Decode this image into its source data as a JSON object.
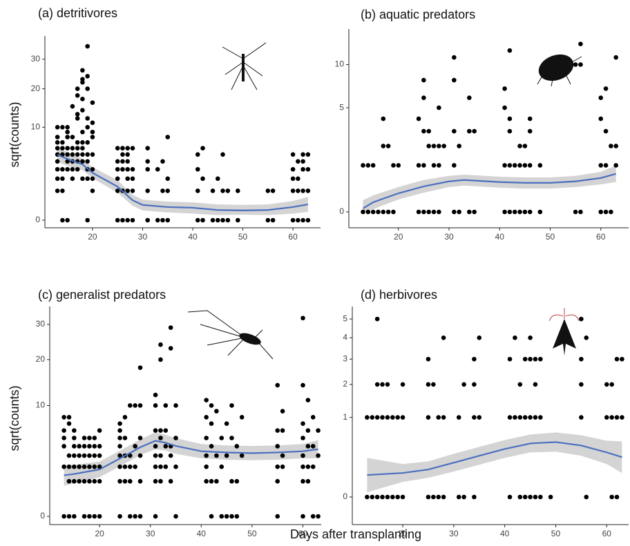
{
  "xlabel": "Days after transplanting",
  "chart_data": [
    {
      "type": "scatter",
      "title": "(a) detritivores",
      "ylabel": "sqrt(counts)",
      "yscale": "sqrt",
      "xlim": [
        10.5,
        65.5
      ],
      "xticks": [
        20,
        30,
        40,
        50,
        60
      ],
      "ylim": [
        0,
        37
      ],
      "yticks": [
        0,
        10,
        20,
        30
      ],
      "point_color": "#000000",
      "line_color": "#4a6fbf",
      "band_color": "#d4d4d4",
      "points": {
        "x": [
          13,
          13,
          13,
          13,
          13,
          13,
          13,
          13,
          13,
          14,
          14,
          14,
          14,
          14,
          14,
          14,
          14,
          15,
          15,
          15,
          15,
          15,
          15,
          15,
          15,
          16,
          16,
          16,
          16,
          16,
          16,
          16,
          17,
          17,
          17,
          17,
          17,
          17,
          17,
          17,
          17,
          18,
          18,
          18,
          18,
          18,
          18,
          18,
          18,
          18,
          18,
          18,
          19,
          19,
          19,
          19,
          19,
          19,
          19,
          19,
          19,
          19,
          19,
          20,
          20,
          20,
          20,
          20,
          20,
          20,
          20,
          25,
          25,
          25,
          25,
          25,
          25,
          26,
          26,
          26,
          26,
          26,
          26,
          27,
          27,
          27,
          27,
          27,
          27,
          27,
          28,
          28,
          28,
          28,
          28,
          31,
          31,
          31,
          31,
          31,
          33,
          33,
          34,
          34,
          34,
          35,
          35,
          35,
          35,
          41,
          41,
          41,
          41,
          42,
          42,
          42,
          44,
          44,
          45,
          45,
          46,
          46,
          46,
          47,
          47,
          49,
          49,
          55,
          55,
          56,
          56,
          60,
          60,
          60,
          60,
          60,
          61,
          61,
          61,
          61,
          62,
          62,
          62,
          62,
          62,
          63,
          63,
          63,
          63
        ],
        "y": [
          1,
          2,
          3,
          4,
          5,
          6,
          7,
          8,
          10,
          0,
          1,
          2,
          3,
          5,
          6,
          7,
          10,
          0,
          3,
          4,
          5,
          6,
          8,
          9,
          10,
          2,
          3,
          4,
          5,
          6,
          8,
          15,
          3,
          4,
          5,
          6,
          7,
          12,
          13,
          18,
          20,
          2,
          4,
          5,
          6,
          7,
          9,
          14,
          17,
          22,
          23,
          26,
          0,
          2,
          3,
          4,
          5,
          7,
          10,
          12,
          20,
          24,
          35,
          1,
          2,
          3,
          5,
          8,
          9,
          11,
          16,
          0,
          1,
          2,
          3,
          4,
          6,
          0,
          1,
          3,
          4,
          5,
          6,
          0,
          1,
          2,
          3,
          4,
          5,
          6,
          0,
          1,
          2,
          3,
          6,
          0,
          1,
          3,
          4,
          6,
          0,
          3,
          0,
          1,
          4,
          0,
          1,
          2,
          8,
          0,
          1,
          3,
          5,
          0,
          2,
          6,
          0,
          1,
          0,
          2,
          0,
          1,
          5,
          0,
          1,
          0,
          1,
          0,
          1,
          0,
          1,
          0,
          1,
          2,
          3,
          5,
          0,
          1,
          2,
          4,
          0,
          1,
          3,
          4,
          5,
          0,
          1,
          3,
          5
        ]
      },
      "smooth": {
        "x": [
          13,
          15,
          18,
          20,
          25,
          28,
          30,
          35,
          40,
          45,
          50,
          55,
          60,
          63
        ],
        "y": [
          4.95,
          4.35,
          3.6,
          2.6,
          1.3,
          0.46,
          0.27,
          0.2,
          0.18,
          0.12,
          0.11,
          0.12,
          0.2,
          0.29
        ],
        "lower": [
          3.96,
          3.42,
          2.92,
          2.04,
          0.88,
          0.24,
          0.11,
          0.07,
          0.05,
          0.03,
          0.035,
          0.03,
          0.05,
          0.08
        ],
        "upper": [
          6.05,
          5.38,
          4.34,
          3.25,
          1.85,
          0.75,
          0.49,
          0.4,
          0.37,
          0.29,
          0.27,
          0.29,
          0.43,
          0.63
        ]
      }
    },
    {
      "type": "scatter",
      "title": "(b) aquatic predators",
      "yscale": "sqrt",
      "xlim": [
        10.2,
        65.5
      ],
      "xticks": [
        20,
        30,
        40,
        50,
        60
      ],
      "ylim": [
        0,
        14.5
      ],
      "yticks": [
        0,
        5,
        10
      ],
      "point_color": "#000000",
      "line_color": "#4a6fbf",
      "band_color": "#d4d4d4",
      "points": {
        "x": [
          13,
          13,
          14,
          14,
          15,
          15,
          16,
          17,
          17,
          17,
          18,
          18,
          19,
          19,
          20,
          24,
          24,
          24,
          25,
          25,
          25,
          25,
          25,
          26,
          26,
          26,
          27,
          27,
          27,
          28,
          28,
          28,
          28,
          29,
          31,
          31,
          31,
          31,
          31,
          32,
          32,
          34,
          34,
          34,
          35,
          35,
          41,
          41,
          41,
          41,
          42,
          42,
          42,
          42,
          42,
          43,
          43,
          44,
          44,
          44,
          45,
          45,
          45,
          46,
          46,
          46,
          46,
          48,
          48,
          55,
          55,
          56,
          56,
          56,
          60,
          60,
          60,
          60,
          61,
          61,
          61,
          61,
          62,
          62,
          63,
          63,
          63
        ],
        "y": [
          0,
          1,
          0,
          1,
          0,
          1,
          0,
          0,
          2,
          4,
          0,
          2,
          0,
          1,
          1,
          0,
          1,
          4,
          0,
          1,
          3,
          6,
          8,
          0,
          2,
          3,
          0,
          1,
          2,
          0,
          1,
          2,
          5,
          2,
          0,
          1,
          3,
          8,
          11,
          0,
          2,
          0,
          3,
          6,
          0,
          3,
          0,
          1,
          5,
          7,
          0,
          1,
          3,
          4,
          12,
          0,
          1,
          0,
          1,
          2,
          0,
          1,
          2,
          0,
          1,
          3,
          4,
          0,
          1,
          0,
          10,
          0,
          10,
          13,
          0,
          1,
          4,
          6,
          0,
          1,
          3,
          7,
          0,
          2,
          1,
          2,
          11
        ]
      },
      "smooth": {
        "x": [
          13,
          15,
          20,
          25,
          30,
          33,
          40,
          45,
          50,
          55,
          60,
          63
        ],
        "y": [
          0.0055,
          0.043,
          0.16,
          0.3,
          0.43,
          0.47,
          0.41,
          0.39,
          0.39,
          0.43,
          0.53,
          0.67
        ],
        "lower": [
          0,
          0.0035,
          0.071,
          0.17,
          0.285,
          0.32,
          0.27,
          0.25,
          0.25,
          0.285,
          0.35,
          0.41
        ],
        "upper": [
          0.064,
          0.127,
          0.285,
          0.47,
          0.6,
          0.64,
          0.57,
          0.55,
          0.55,
          0.6,
          0.74,
          0.99
        ]
      }
    },
    {
      "type": "scatter",
      "title": "(c) generalist predators",
      "ylabel": "sqrt(counts)",
      "yscale": "sqrt",
      "xlim": [
        10.2,
        63.6
      ],
      "xticks": [
        20,
        30,
        40,
        50,
        60
      ],
      "ylim": [
        0,
        34
      ],
      "yticks": [
        0,
        10,
        20,
        30
      ],
      "point_color": "#000000",
      "line_color": "#4a6fbf",
      "band_color": "#d4d4d4",
      "points": {
        "x": [
          13,
          13,
          13,
          13,
          13,
          13,
          14,
          14,
          14,
          14,
          14,
          14,
          15,
          15,
          15,
          15,
          15,
          15,
          15,
          16,
          16,
          16,
          16,
          17,
          17,
          17,
          17,
          17,
          17,
          18,
          18,
          18,
          18,
          18,
          18,
          19,
          19,
          19,
          19,
          19,
          19,
          20,
          20,
          20,
          20,
          20,
          20,
          24,
          24,
          24,
          24,
          24,
          24,
          24,
          24,
          25,
          25,
          25,
          25,
          25,
          26,
          26,
          26,
          26,
          26,
          27,
          27,
          27,
          27,
          28,
          28,
          28,
          28,
          28,
          28,
          31,
          31,
          31,
          31,
          31,
          31,
          31,
          31,
          32,
          32,
          32,
          32,
          32,
          32,
          32,
          33,
          33,
          33,
          33,
          34,
          34,
          34,
          34,
          34,
          35,
          35,
          35,
          35,
          41,
          41,
          41,
          41,
          41,
          41,
          42,
          42,
          42,
          42,
          42,
          43,
          43,
          43,
          44,
          44,
          44,
          45,
          45,
          45,
          46,
          46,
          46,
          46,
          47,
          47,
          47,
          48,
          48,
          55,
          55,
          55,
          55,
          55,
          55,
          56,
          56,
          56,
          56,
          60,
          60,
          60,
          60,
          60,
          60,
          60,
          60,
          61,
          61,
          61,
          61,
          61,
          62,
          62,
          62,
          62,
          63,
          63,
          63
        ],
        "y": [
          0,
          2,
          4,
          5,
          6,
          8,
          0,
          1,
          2,
          3,
          7,
          8,
          0,
          1,
          2,
          3,
          4,
          5,
          6,
          1,
          2,
          3,
          4,
          0,
          1,
          2,
          3,
          4,
          5,
          0,
          1,
          2,
          3,
          4,
          5,
          0,
          1,
          2,
          3,
          4,
          5,
          0,
          1,
          2,
          3,
          4,
          6,
          0,
          1,
          2,
          3,
          4,
          5,
          6,
          7,
          1,
          2,
          3,
          5,
          8,
          0,
          1,
          2,
          3,
          10,
          0,
          2,
          4,
          10,
          0,
          1,
          3,
          5,
          10,
          18,
          0,
          1,
          2,
          3,
          4,
          6,
          10,
          12,
          1,
          2,
          3,
          5,
          6,
          20,
          24,
          2,
          4,
          6,
          10,
          1,
          3,
          4,
          23,
          29,
          0,
          2,
          5,
          10,
          1,
          2,
          3,
          5,
          8,
          11,
          0,
          1,
          4,
          7,
          10,
          1,
          3,
          9,
          0,
          2,
          5,
          0,
          3,
          7,
          0,
          1,
          5,
          10,
          0,
          1,
          4,
          3,
          8,
          0,
          1,
          2,
          4,
          6,
          14,
          2,
          3,
          6,
          9,
          0,
          1,
          2,
          3,
          5,
          7,
          14,
          32,
          1,
          2,
          4,
          6,
          11,
          0,
          2,
          4,
          8,
          0,
          3,
          6
        ]
      },
      "smooth": {
        "x": [
          13,
          15,
          20,
          25,
          28,
          31,
          33,
          35,
          40,
          45,
          50,
          55,
          60,
          63
        ],
        "y": [
          1.37,
          1.46,
          1.79,
          2.99,
          3.88,
          4.65,
          4.41,
          4.03,
          3.45,
          3.32,
          3.25,
          3.32,
          3.45,
          3.67
        ],
        "lower": [
          0.76,
          0.9,
          1.24,
          2.27,
          3.05,
          3.67,
          3.52,
          3.18,
          2.74,
          2.61,
          2.56,
          2.61,
          2.74,
          2.74
        ],
        "upper": [
          2.16,
          2.16,
          2.44,
          3.81,
          4.81,
          5.75,
          5.4,
          4.98,
          4.26,
          4.1,
          4.03,
          4.1,
          4.26,
          4.73
        ]
      }
    },
    {
      "type": "scatter",
      "title": "(d) herbivores",
      "yscale": "sqrt",
      "xlim": [
        10.1,
        64.3
      ],
      "xticks": [
        20,
        30,
        40,
        50,
        60
      ],
      "ylim": [
        0,
        5.4
      ],
      "yticks": [
        0,
        1,
        2,
        3,
        4,
        5
      ],
      "point_color": "#000000",
      "line_color": "#4a6fbf",
      "band_color": "#d4d4d4",
      "points": {
        "x": [
          13,
          13,
          14,
          14,
          15,
          15,
          15,
          15,
          16,
          16,
          16,
          17,
          17,
          17,
          18,
          18,
          19,
          19,
          20,
          20,
          20,
          25,
          25,
          25,
          25,
          26,
          26,
          27,
          27,
          28,
          28,
          28,
          31,
          31,
          32,
          32,
          34,
          34,
          34,
          34,
          35,
          35,
          41,
          41,
          41,
          42,
          42,
          43,
          43,
          43,
          44,
          44,
          44,
          45,
          45,
          45,
          45,
          46,
          46,
          46,
          46,
          47,
          47,
          47,
          49,
          55,
          55,
          55,
          55,
          56,
          56,
          60,
          60,
          61,
          61,
          61,
          62,
          62,
          62,
          63,
          63
        ],
        "y": [
          0,
          1,
          0,
          1,
          0,
          1,
          2,
          5,
          0,
          1,
          2,
          0,
          1,
          2,
          0,
          1,
          0,
          1,
          0,
          1,
          2,
          0,
          1,
          2,
          3,
          0,
          2,
          0,
          1,
          0,
          1,
          4,
          0,
          1,
          0,
          2,
          0,
          1,
          2,
          3,
          1,
          4,
          0,
          1,
          3,
          1,
          4,
          0,
          1,
          2,
          0,
          1,
          3,
          0,
          1,
          3,
          4,
          0,
          1,
          2,
          3,
          0,
          1,
          3,
          0,
          1,
          2,
          3,
          5,
          0,
          4,
          1,
          2,
          0,
          1,
          2,
          0,
          1,
          3,
          1,
          3
        ]
      },
      "smooth": {
        "x": [
          13,
          20,
          25,
          30,
          35,
          40,
          45,
          50,
          55,
          60,
          63
        ],
        "y": [
          0.076,
          0.091,
          0.119,
          0.186,
          0.268,
          0.364,
          0.452,
          0.476,
          0.418,
          0.314,
          0.25
        ],
        "lower": [
          0.0036,
          0.036,
          0.058,
          0.102,
          0.164,
          0.241,
          0.314,
          0.324,
          0.268,
          0.171,
          0.091
        ],
        "upper": [
          0.241,
          0.171,
          0.2,
          0.295,
          0.396,
          0.512,
          0.615,
          0.657,
          0.602,
          0.5,
          0.488
        ]
      }
    }
  ]
}
